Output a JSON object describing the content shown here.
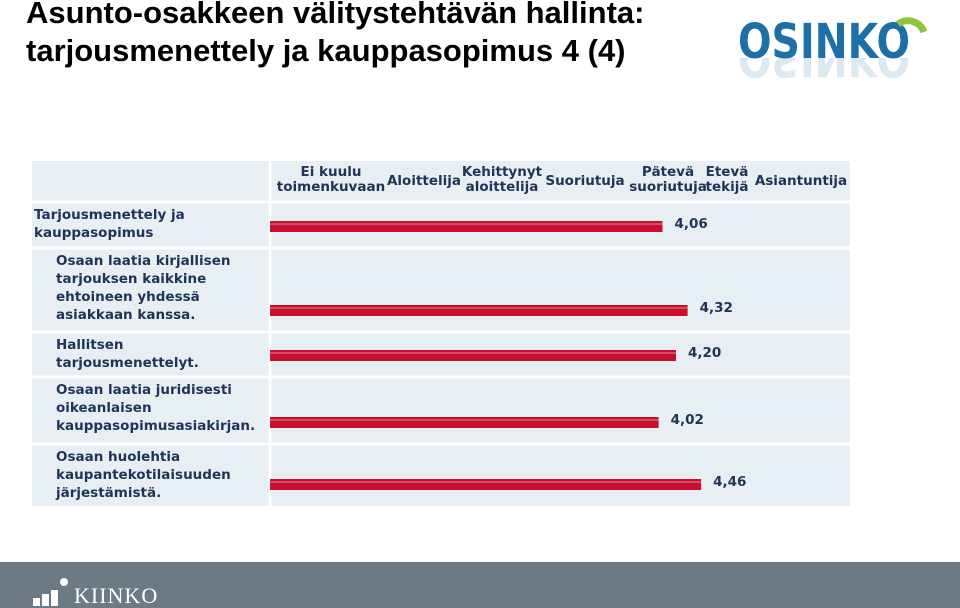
{
  "slide": {
    "title_line1": "Asunto-osakkeen välitystehtävän hallinta:",
    "title_line2": "tarjousmenettely ja kauppasopimus 4 (4)",
    "logo_text": "OSINKO",
    "footer_logo_text": "KIINKO"
  },
  "colors": {
    "bar": "#c8102e",
    "chart_bg": "#e7eef4",
    "text": "#1f3456",
    "osinko_blue": "#1d6fa8",
    "osinko_green": "#8cc63f",
    "footer": "#6c7a86"
  },
  "chart_data": {
    "type": "bar",
    "orientation": "horizontal",
    "title": "",
    "xlabel": "",
    "ylabel": "",
    "x_ticks": [
      "Ei kuulu toimenkuvaan",
      "Aloittelija",
      "Kehittynyt aloittelija",
      "Suoriutuja",
      "Pätevä suoriutuja",
      "Etevä tekijä",
      "Asiantuntija"
    ],
    "xlim": [
      0,
      6
    ],
    "categories": [
      "Tarjousmenettely ja kauppasopimus",
      "Osaan laatia kirjallisen tarjouksen kaikkine ehtoineen yhdessä asiakkaan kanssa.",
      "Hallitsen tarjousmenettelyt.",
      "Osaan laatia juridisesti oikeanlaisen kauppasopimusasiakirjan.",
      "Osaan huolehtia kaupantekotilaisuuden järjestämistä."
    ],
    "values": [
      4.06,
      4.32,
      4.2,
      4.02,
      4.46
    ],
    "value_labels": [
      "4,06",
      "4,32",
      "4,20",
      "4,02",
      "4,46"
    ],
    "grid": true,
    "legend": "none"
  }
}
